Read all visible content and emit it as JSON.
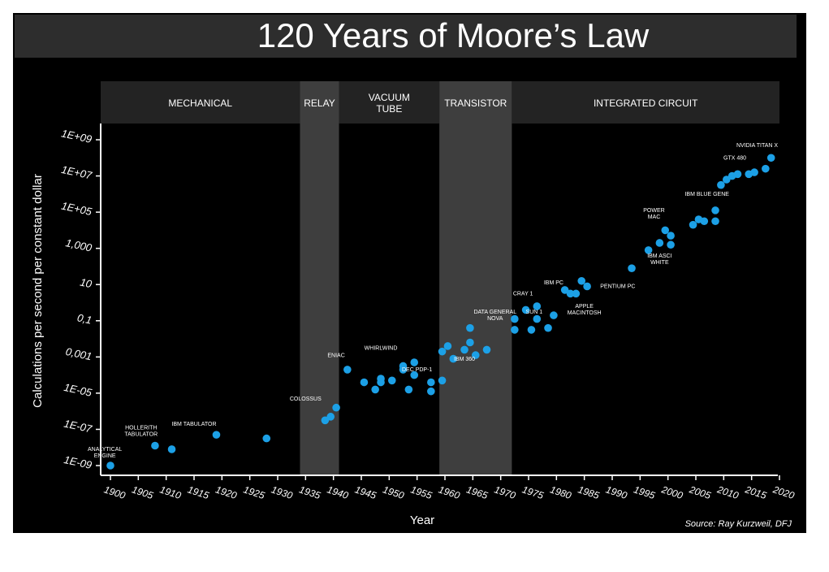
{
  "title": "120 Years of Moore’s Law",
  "source": "Source: Ray Kurzweil, DFJ",
  "colors": {
    "background": "#000000",
    "title_bar": "#2d2d2d",
    "era_header": "#232323",
    "era_highlight": "#3e3e3e",
    "point": "#1ca0e6",
    "text": "#ffffff"
  },
  "chart_data": {
    "type": "scatter",
    "xlabel": "Year",
    "ylabel": "Calculations per second per constant dollar",
    "xlim": [
      1898,
      2020
    ],
    "x_ticks": [
      1900,
      1905,
      1910,
      1915,
      1920,
      1925,
      1930,
      1935,
      1940,
      1945,
      1950,
      1955,
      1960,
      1965,
      1970,
      1975,
      1980,
      1985,
      1990,
      1995,
      2000,
      2005,
      2010,
      2015,
      2020
    ],
    "ylim_log10": [
      -9,
      9
    ],
    "y_ticks": [
      {
        "log10": 9,
        "label": "1E+09"
      },
      {
        "log10": 7,
        "label": "1E+07"
      },
      {
        "log10": 5,
        "label": "1E+05"
      },
      {
        "log10": 3,
        "label": "1,000"
      },
      {
        "log10": 1,
        "label": "10"
      },
      {
        "log10": -1,
        "label": "0,1"
      },
      {
        "log10": -3,
        "label": "0,001"
      },
      {
        "log10": -5,
        "label": "1E-05"
      },
      {
        "log10": -7,
        "label": "1E-07"
      },
      {
        "log10": -9,
        "label": "1E-09"
      }
    ],
    "eras": [
      {
        "label": "MECHANICAL",
        "start": 1898,
        "end": 1934,
        "highlight": false
      },
      {
        "label": "RELAY",
        "start": 1934,
        "end": 1941,
        "highlight": true
      },
      {
        "label": "VACUUM\nTUBE",
        "start": 1941,
        "end": 1959,
        "highlight": false
      },
      {
        "label": "TRANSISTOR",
        "start": 1959,
        "end": 1972,
        "highlight": true
      },
      {
        "label": "INTEGRATED CIRCUIT",
        "start": 1972,
        "end": 2020,
        "highlight": false
      }
    ],
    "points": [
      {
        "x": 1900,
        "y": -9.0
      },
      {
        "x": 1908,
        "y": -7.9
      },
      {
        "x": 1911,
        "y": -8.1
      },
      {
        "x": 1919,
        "y": -7.3
      },
      {
        "x": 1928,
        "y": -7.5
      },
      {
        "x": 1938.5,
        "y": -6.5
      },
      {
        "x": 1939.5,
        "y": -6.3
      },
      {
        "x": 1940.5,
        "y": -5.8
      },
      {
        "x": 1942.5,
        "y": -3.7
      },
      {
        "x": 1945.5,
        "y": -4.4
      },
      {
        "x": 1947.5,
        "y": -4.8
      },
      {
        "x": 1948.5,
        "y": -4.4
      },
      {
        "x": 1948.5,
        "y": -4.2
      },
      {
        "x": 1950.5,
        "y": -4.3
      },
      {
        "x": 1952.5,
        "y": -3.5
      },
      {
        "x": 1952.5,
        "y": -3.7
      },
      {
        "x": 1953.5,
        "y": -4.8
      },
      {
        "x": 1954.5,
        "y": -3.3
      },
      {
        "x": 1954.5,
        "y": -4.0
      },
      {
        "x": 1957.5,
        "y": -4.9
      },
      {
        "x": 1957.5,
        "y": -4.4
      },
      {
        "x": 1959.5,
        "y": -4.3
      },
      {
        "x": 1959.5,
        "y": -2.7
      },
      {
        "x": 1960.5,
        "y": -2.4
      },
      {
        "x": 1961.5,
        "y": -3.1
      },
      {
        "x": 1963.5,
        "y": -2.6
      },
      {
        "x": 1964.5,
        "y": -2.2
      },
      {
        "x": 1964.5,
        "y": -1.4
      },
      {
        "x": 1965.5,
        "y": -2.9
      },
      {
        "x": 1967.5,
        "y": -2.6
      },
      {
        "x": 1972.5,
        "y": -1.5
      },
      {
        "x": 1972.5,
        "y": -0.9
      },
      {
        "x": 1974.5,
        "y": -0.4
      },
      {
        "x": 1975.5,
        "y": -1.5
      },
      {
        "x": 1976.5,
        "y": -0.9
      },
      {
        "x": 1976.5,
        "y": -0.2
      },
      {
        "x": 1978.5,
        "y": -1.4
      },
      {
        "x": 1979.5,
        "y": -0.7
      },
      {
        "x": 1981.5,
        "y": 0.7
      },
      {
        "x": 1982.5,
        "y": 0.5
      },
      {
        "x": 1983.5,
        "y": 0.5
      },
      {
        "x": 1984.5,
        "y": 1.2
      },
      {
        "x": 1985.5,
        "y": 0.9
      },
      {
        "x": 1993.5,
        "y": 1.9
      },
      {
        "x": 1996.5,
        "y": 2.9
      },
      {
        "x": 1998.5,
        "y": 3.3
      },
      {
        "x": 1999.5,
        "y": 4.0
      },
      {
        "x": 2000.5,
        "y": 3.7
      },
      {
        "x": 2000.5,
        "y": 3.2
      },
      {
        "x": 2004.5,
        "y": 4.3
      },
      {
        "x": 2005.5,
        "y": 4.6
      },
      {
        "x": 2006.5,
        "y": 4.5
      },
      {
        "x": 2008.5,
        "y": 4.5
      },
      {
        "x": 2008.5,
        "y": 5.1
      },
      {
        "x": 2009.5,
        "y": 6.5
      },
      {
        "x": 2010.5,
        "y": 6.8
      },
      {
        "x": 2011.5,
        "y": 7.0
      },
      {
        "x": 2012.5,
        "y": 7.1
      },
      {
        "x": 2014.5,
        "y": 7.1
      },
      {
        "x": 2015.5,
        "y": 7.2
      },
      {
        "x": 2017.5,
        "y": 7.4
      },
      {
        "x": 2018.5,
        "y": 8.0
      }
    ],
    "annotations": [
      {
        "text": "ANALYTICAL\nENGINE",
        "x": 1899,
        "y": -8.2
      },
      {
        "text": "HOLLERITH\nTABULATOR",
        "x": 1905.5,
        "y": -7.0
      },
      {
        "text": "IBM TABULATOR",
        "x": 1915,
        "y": -6.8
      },
      {
        "text": "COLOSSUS",
        "x": 1935,
        "y": -5.4
      },
      {
        "text": "ENIAC",
        "x": 1940.5,
        "y": -3.0
      },
      {
        "text": "WHIRLWIND",
        "x": 1948.5,
        "y": -2.6
      },
      {
        "text": "DEC PDP-1",
        "x": 1955,
        "y": -3.8
      },
      {
        "text": "IBM 360",
        "x": 1963.5,
        "y": -3.2
      },
      {
        "text": "DATA GENERAL\nNOVA",
        "x": 1969,
        "y": -0.6
      },
      {
        "text": "CRAY 1",
        "x": 1974,
        "y": 0.4
      },
      {
        "text": "SUN 1",
        "x": 1976,
        "y": -0.6
      },
      {
        "text": "IBM PC",
        "x": 1979.5,
        "y": 1.0
      },
      {
        "text": "APPLE\nMACINTOSH",
        "x": 1985,
        "y": -0.3
      },
      {
        "text": "PENTIUM PC",
        "x": 1991,
        "y": 0.8
      },
      {
        "text": "POWER\nMAC",
        "x": 1997.5,
        "y": 5.0
      },
      {
        "text": "IBM ASCI\nWHITE",
        "x": 1998.5,
        "y": 2.5
      },
      {
        "text": "IBM BLUE GENE",
        "x": 2007,
        "y": 5.9
      },
      {
        "text": "GTX 480",
        "x": 2012,
        "y": 7.9
      },
      {
        "text": "NVIDIA TITAN X",
        "x": 2016,
        "y": 8.6
      }
    ]
  }
}
